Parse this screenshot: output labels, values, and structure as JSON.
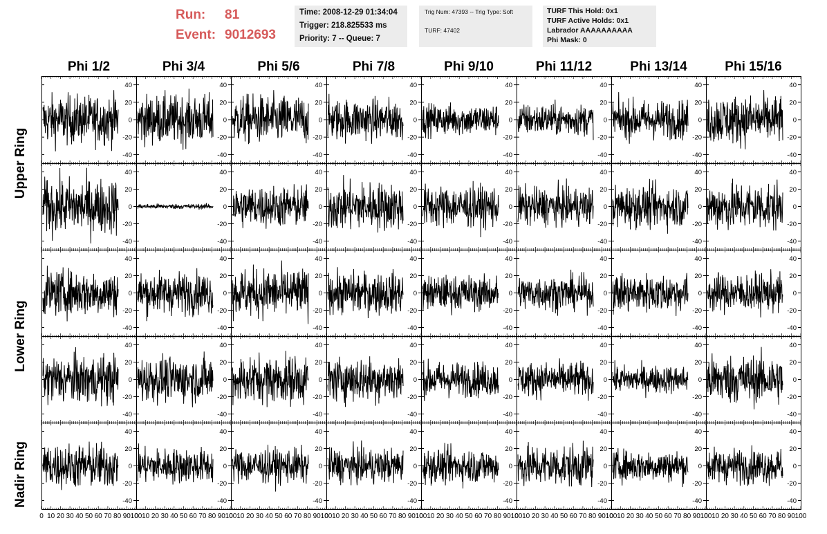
{
  "header": {
    "run_label": "Run:",
    "run_value": "81",
    "event_label": "Event:",
    "event_value": "9012693"
  },
  "info_box_1": {
    "time": "Time: 2008-12-29 01:34:04",
    "trigger": "Trigger: 218.825533 ms",
    "priority": "Priority: 7 -- Queue: 7"
  },
  "info_box_2": {
    "trig": "Trig Num: 47393 -- Trig Type: Soft",
    "turf": "TURF: 47402"
  },
  "info_box_3": {
    "hold": "TURF This Hold: 0x1",
    "active": "TURF Active Holds: 0x1",
    "labrador": "Labrador AAAAAAAAAA",
    "mask": "Phi Mask: 0"
  },
  "columns": [
    "Phi 1/2",
    "Phi 3/4",
    "Phi 5/6",
    "Phi 7/8",
    "Phi 9/10",
    "Phi 11/12",
    "Phi 13/14",
    "Phi 15/16"
  ],
  "ring_labels": [
    "Upper Ring",
    "Lower Ring",
    "Nadir Ring"
  ],
  "chart_data": {
    "type": "line",
    "description_grid": "5 rows x 8 columns of waveform panels",
    "x_range": [
      0,
      100
    ],
    "y_ticks": [
      -40,
      -20,
      0,
      20,
      40
    ],
    "x_tick_labels": [
      "0",
      "10",
      "20",
      "30",
      "40",
      "50",
      "60",
      "70",
      "80",
      "90",
      "100"
    ],
    "panel_amplitude": [
      [
        14,
        14,
        14,
        12,
        9,
        9,
        11,
        14
      ],
      [
        16,
        1.5,
        12,
        14,
        12,
        11,
        12,
        14
      ],
      [
        13,
        12,
        14,
        12,
        10,
        10,
        11,
        11
      ],
      [
        14,
        13,
        14,
        13,
        10,
        10,
        8,
        14
      ],
      [
        13,
        10,
        10,
        10,
        10,
        12,
        9,
        10
      ]
    ],
    "line_color": "#000000"
  }
}
